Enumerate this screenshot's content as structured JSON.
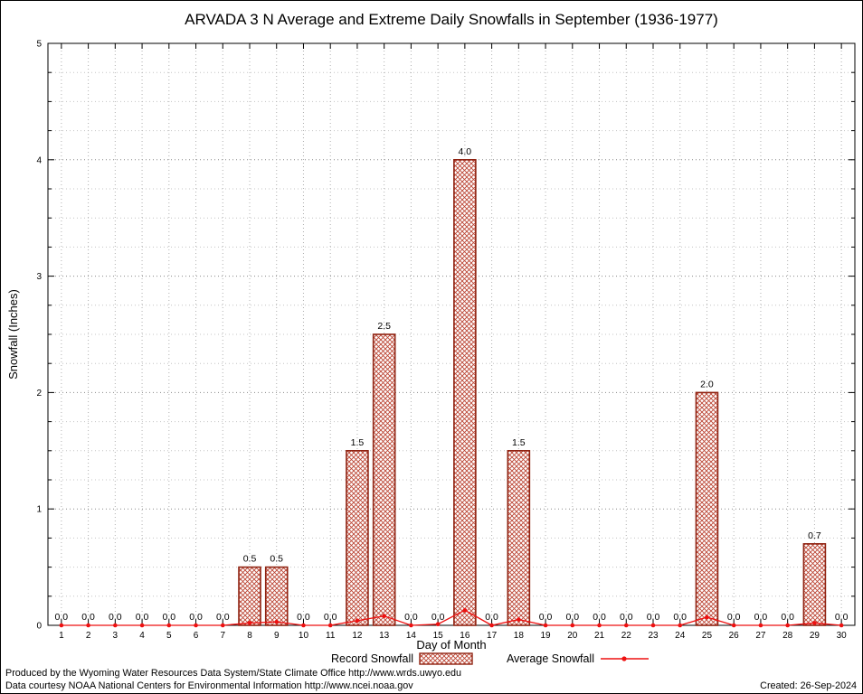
{
  "colors": {
    "bar_edge": "#8f2211",
    "bar_hatch": "#bb4433",
    "line": "#ee1111",
    "grid_major": "#8a8a8a",
    "grid_minor": "#c4c4c4",
    "grid_vertical": "#b0b0b0"
  },
  "footer": {
    "line1": "Produced by the Wyoming Water Resources Data System/State Climate Office http://www.wrds.uwyo.edu",
    "line2": "Data courtesy NOAA National Centers for Environmental Information http://www.ncei.noaa.gov",
    "created": "Created: 26-Sep-2024"
  },
  "chart_data": {
    "type": "bar",
    "title": "ARVADA 3 N Average and Extreme Daily Snowfalls in September (1936-1977)",
    "xlabel": "Day of Month",
    "ylabel": "Snowfall (Inches)",
    "ylim": [
      0,
      5
    ],
    "yticks": [
      0,
      1,
      2,
      3,
      4,
      5
    ],
    "y_minor_step": 0.25,
    "grid": true,
    "legend_position": "bottom",
    "categories": [
      1,
      2,
      3,
      4,
      5,
      6,
      7,
      8,
      9,
      10,
      11,
      12,
      13,
      14,
      15,
      16,
      17,
      18,
      19,
      20,
      21,
      22,
      23,
      24,
      25,
      26,
      27,
      28,
      29,
      30
    ],
    "series": [
      {
        "name": "Record Snowfall",
        "type": "bar",
        "values": [
          0,
          0,
          0,
          0,
          0,
          0,
          0,
          0.5,
          0.5,
          0,
          0,
          1.5,
          2.5,
          0,
          0,
          4.0,
          0,
          1.5,
          0,
          0,
          0,
          0,
          0,
          0,
          2.0,
          0,
          0,
          0,
          0.7,
          0
        ]
      },
      {
        "name": "Average Snowfall",
        "type": "line",
        "values": [
          0,
          0,
          0,
          0,
          0,
          0,
          0,
          0.02,
          0.03,
          0,
          0,
          0.04,
          0.08,
          0,
          0.01,
          0.13,
          0,
          0.05,
          0,
          0,
          0,
          0,
          0,
          0,
          0.07,
          0,
          0,
          0,
          0.02,
          0
        ]
      }
    ],
    "bar_value_labels": [
      "0.0",
      "0.0",
      "0.0",
      "0.0",
      "0.0",
      "0.0",
      "0.0",
      "0.5",
      "0.5",
      "0.0",
      "0.0",
      "1.5",
      "2.5",
      "0.0",
      "0.0",
      "4.0",
      "0.0",
      "1.5",
      "0.0",
      "0.0",
      "0.0",
      "0.0",
      "0.0",
      "0.0",
      "2.0",
      "0.0",
      "0.0",
      "0.0",
      "0.7",
      "0.0"
    ]
  }
}
